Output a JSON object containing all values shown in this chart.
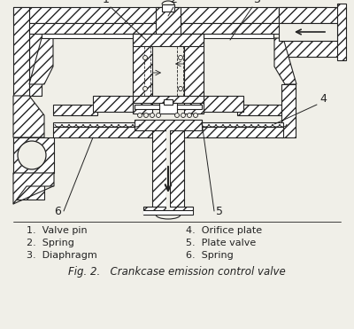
{
  "title": "Fig. 2.   Crankcase emission control valve",
  "bg_color": "#f0efe8",
  "line_color": "#222222",
  "legend_left": [
    "1.  Valve pin",
    "2.  Spring",
    "3.  Diaphragm"
  ],
  "legend_right": [
    "4.  Orifice plate",
    "5.  Plate valve",
    "6.  Spring"
  ],
  "figsize": [
    4.0,
    3.71
  ],
  "dpi": 100
}
